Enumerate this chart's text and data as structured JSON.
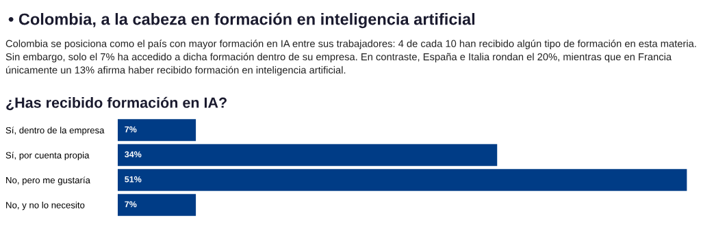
{
  "chart_data": {
    "type": "bar",
    "orientation": "horizontal",
    "title": "• Colombia, a la cabeza en formación en inteligencia artificial",
    "subtitle": "Colombia se posiciona como el país con mayor formación en IA entre sus trabajadores: 4 de cada 10 han recibido algún tipo de formación en esta materia. Sin embargo, solo el 7% ha accedido a dicha formación dentro de su empresa. En contraste, España e Italia rondan el 20%, mientras que en Francia únicamente un 13% afirma haber recibido formación en inteligencia artificial.",
    "annotations": [
      "¿Has recibido formación en IA?"
    ],
    "categories": [
      "Sí, dentro de la empresa",
      "Sí, por cuenta propia",
      "No, pero me gustaría",
      "No, y no lo necesito"
    ],
    "values": [
      7,
      34,
      51,
      7
    ],
    "value_labels": [
      "7%",
      "34%",
      "51%",
      "7%"
    ],
    "color": "#003c86",
    "grid": false,
    "legend": false
  }
}
